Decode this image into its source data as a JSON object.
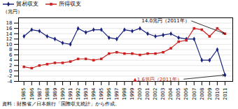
{
  "chart_data": {
    "type": "line",
    "x": [
      1985,
      1986,
      1987,
      1988,
      1989,
      1990,
      1991,
      1992,
      1993,
      1994,
      1995,
      1996,
      1997,
      1998,
      1999,
      2000,
      2001,
      2002,
      2003,
      2004,
      2005,
      2006,
      2007,
      2008,
      2009,
      2010,
      2011
    ],
    "series": [
      {
        "name": "貿易収支",
        "color": "#1a237e",
        "marker": "diamond",
        "values": [
          13.0,
          15.5,
          15.0,
          13.0,
          12.0,
          10.5,
          10.0,
          16.0,
          14.5,
          15.5,
          15.5,
          12.5,
          12.0,
          15.5,
          15.0,
          16.0,
          14.0,
          13.0,
          13.5,
          14.0,
          12.5,
          12.0,
          12.0,
          4.0,
          4.0,
          8.0,
          -1.6
        ]
      },
      {
        "name": "所得収支",
        "color": "#cc2222",
        "marker": "square",
        "values": [
          1.5,
          1.0,
          2.0,
          2.5,
          3.0,
          3.0,
          3.5,
          4.5,
          4.5,
          4.0,
          4.5,
          6.5,
          7.0,
          6.5,
          6.5,
          6.0,
          6.5,
          6.5,
          7.0,
          8.5,
          11.0,
          11.5,
          16.0,
          15.5,
          13.0,
          16.0,
          14.0
        ]
      }
    ],
    "ylabel": "（兆円）",
    "xlim": [
      1984.3,
      2012.0
    ],
    "xticks": [
      1985,
      1986,
      1987,
      1988,
      1989,
      1990,
      1991,
      1992,
      1993,
      1994,
      1995,
      1996,
      1997,
      1998,
      1999,
      2000,
      2001,
      2002,
      2003,
      2004,
      2005,
      2006,
      2007,
      2008,
      2009,
      2010,
      2011
    ],
    "ylim": [
      -4,
      20
    ],
    "yticks": [
      -4,
      -2,
      0,
      2,
      4,
      6,
      8,
      10,
      12,
      14,
      16,
      18
    ],
    "grid": true,
    "legend": "upper left",
    "annotations": [
      {
        "text": "14.0兆円（2011年）",
        "x": 2011,
        "y": 14.0,
        "text_x": 2006.5,
        "text_y": 19.0,
        "color": "black"
      },
      {
        "text": "▲1.6兆円（2011年）",
        "x": 2011,
        "y": -1.6,
        "text_x": 2005.5,
        "text_y": -3.2,
        "color": "#cc2222"
      }
    ],
    "caption": "資料：財務省／日本銀行「国際収支統計」から作成。"
  }
}
